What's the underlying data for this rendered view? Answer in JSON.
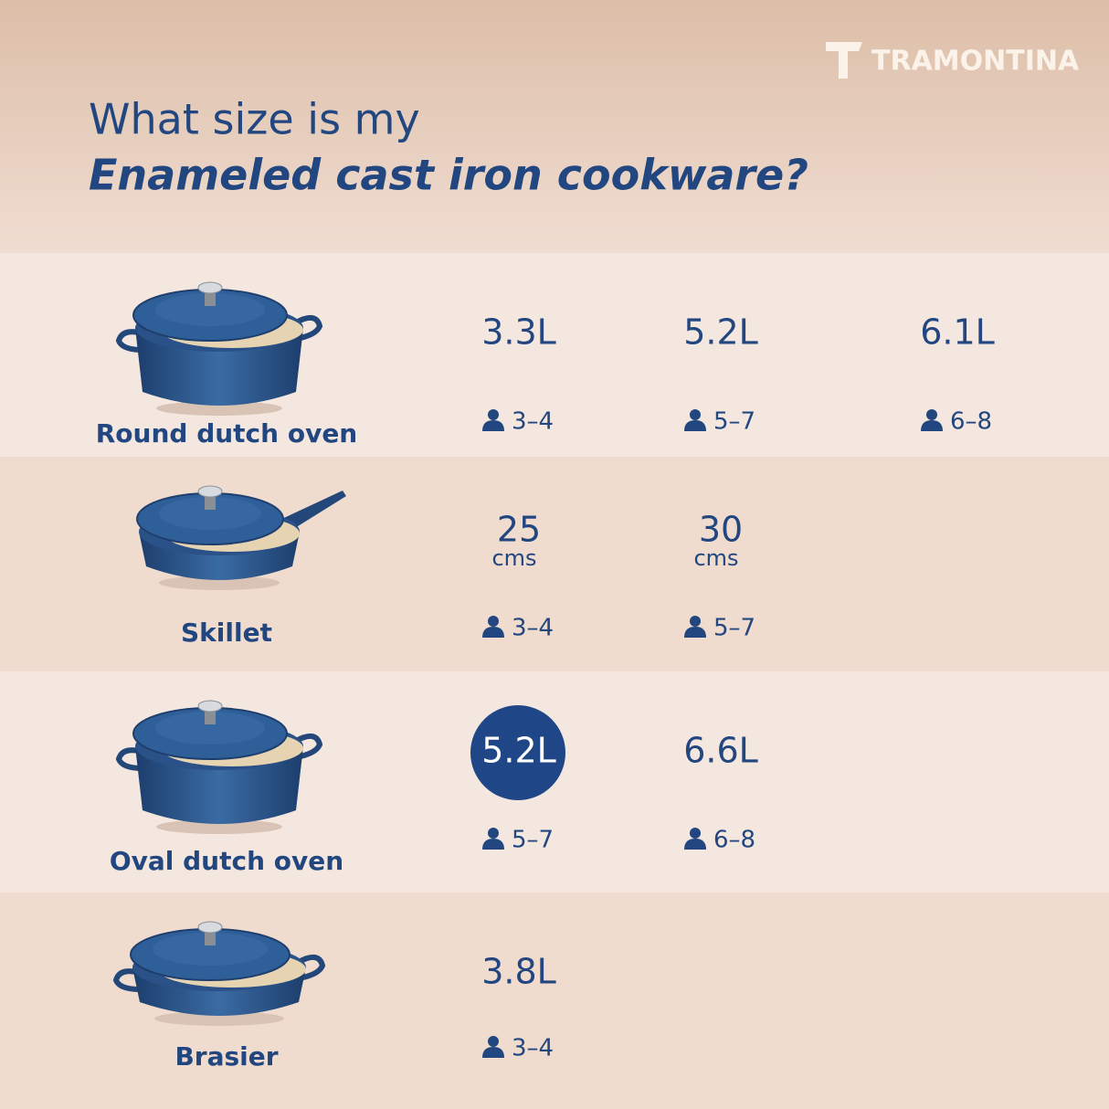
{
  "brand": "TRAMONTINA",
  "title": {
    "line1": "What size is my",
    "line2": "Enameled cast iron cookware?"
  },
  "rows": [
    {
      "name": "Round dutch oven",
      "sizes": [
        {
          "size": "3.3L",
          "servings": "3–4"
        },
        {
          "size": "5.2L",
          "servings": "5–7"
        },
        {
          "size": "6.1L",
          "servings": "6–8"
        }
      ]
    },
    {
      "name": "Skillet",
      "sizes": [
        {
          "size": "25",
          "unit": "cms",
          "servings": "3–4"
        },
        {
          "size": "30",
          "unit": "cms",
          "servings": "5–7"
        }
      ]
    },
    {
      "name": "Oval dutch oven",
      "sizes": [
        {
          "size": "5.2L",
          "servings": "5–7",
          "highlighted": true
        },
        {
          "size": "6.6L",
          "servings": "6–8"
        }
      ]
    },
    {
      "name": "Brasier",
      "sizes": [
        {
          "size": "3.8L",
          "servings": "3–4"
        }
      ]
    }
  ]
}
